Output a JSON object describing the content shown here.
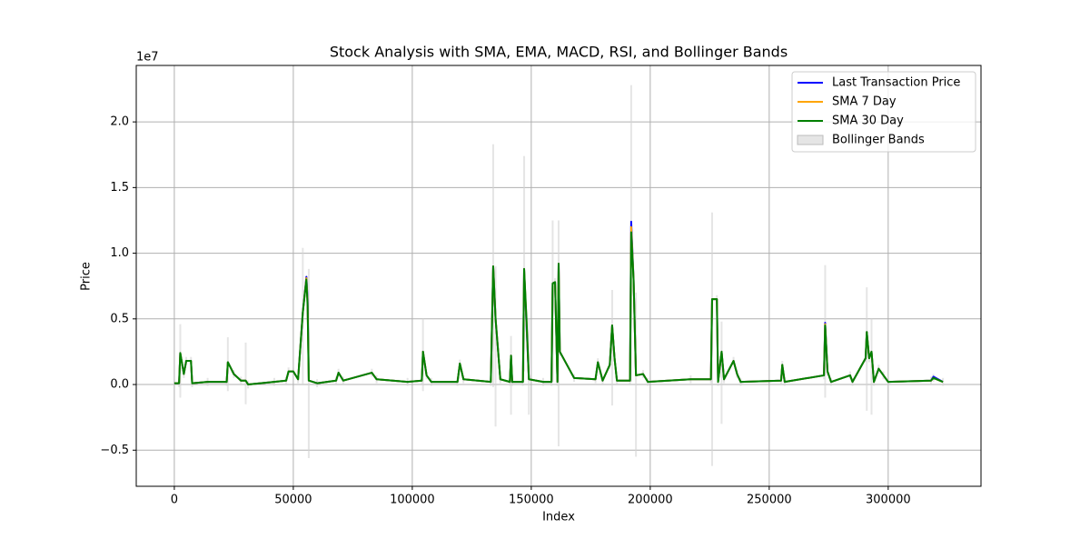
{
  "chart_data": {
    "type": "line",
    "title": "Stock Analysis with SMA, EMA, MACD, RSI, and Bollinger Bands",
    "x_label": "Index",
    "y_label": "Price",
    "y_offset_label": "1e7",
    "xlim": [
      -16000,
      339000
    ],
    "ylim": [
      -0.775,
      2.43
    ],
    "xticks": [
      0,
      50000,
      100000,
      150000,
      200000,
      250000,
      300000
    ],
    "yticks": [
      {
        "value": -0.5,
        "label": "−0.5"
      },
      {
        "value": 0,
        "label": "0.0"
      },
      {
        "value": 0.5,
        "label": "0.5"
      },
      {
        "value": 1,
        "label": "1.0"
      },
      {
        "value": 1.5,
        "label": "1.5"
      },
      {
        "value": 2,
        "label": "2.0"
      }
    ],
    "grid": true,
    "legend_position": "upper-right",
    "x": [
      0,
      2000,
      2500,
      4000,
      5000,
      7000,
      7500,
      14000,
      22000,
      22500,
      25000,
      28000,
      30000,
      31000,
      42000,
      47000,
      48000,
      50000,
      52000,
      54000,
      55500,
      56000,
      56500,
      60000,
      68000,
      69000,
      71000,
      83000,
      85000,
      98000,
      104000,
      104500,
      106000,
      108000,
      119000,
      120000,
      121500,
      133000,
      134000,
      135000,
      137000,
      141000,
      141500,
      142000,
      146500,
      147000,
      148000,
      149000,
      155000,
      158500,
      159000,
      160000,
      161000,
      161500,
      162000,
      168000,
      177000,
      178000,
      180000,
      183000,
      184000,
      185000,
      186000,
      191500,
      192000,
      193000,
      194000,
      197000,
      199000,
      217000,
      225500,
      226000,
      228000,
      228500,
      230000,
      231000,
      235000,
      236500,
      238000,
      255000,
      255500,
      256500,
      273000,
      273500,
      274500,
      276000,
      284000,
      285000,
      290500,
      291000,
      292000,
      293000,
      294000,
      296000,
      298000,
      300000,
      318000,
      319000,
      323000
    ],
    "bands": {
      "name": "Bollinger Bands",
      "color": "#d3d3d3",
      "upper": [
        0.04,
        0.04,
        0.46,
        0.11,
        0.21,
        0.21,
        0.04,
        0.05,
        0.05,
        0.36,
        0.11,
        0.06,
        0.32,
        0.03,
        0.05,
        0.06,
        0.13,
        0.13,
        0.07,
        1.04,
        0.83,
        0.63,
        0.88,
        0.04,
        0.06,
        0.12,
        0.06,
        0.12,
        0.07,
        0.05,
        0.06,
        0.5,
        0.1,
        0.05,
        0.05,
        0.19,
        0.07,
        0.05,
        1.83,
        0.9,
        0.07,
        0.05,
        0.37,
        0.05,
        0.05,
        1.74,
        0.53,
        0.5,
        0.05,
        0.05,
        1.25,
        0.81,
        0.05,
        1.25,
        0.28,
        0.08,
        0.07,
        0.2,
        0.06,
        0.18,
        0.72,
        0.23,
        0.06,
        0.06,
        2.28,
        0.83,
        0.7,
        0.11,
        0.05,
        0.07,
        0.07,
        1.31,
        0.68,
        0.05,
        0.48,
        0.07,
        0.21,
        0.11,
        0.05,
        0.06,
        0.18,
        0.05,
        0.1,
        0.91,
        0.13,
        0.05,
        0.1,
        0.05,
        0.23,
        0.74,
        0.23,
        0.5,
        0.05,
        0.15,
        0.1,
        0.05,
        0.06,
        0.08,
        0.05
      ],
      "lower": [
        -0.02,
        -0.02,
        -0.1,
        0.05,
        0.15,
        0.15,
        -0.02,
        -0.01,
        -0.01,
        -0.05,
        0.05,
        0,
        -0.15,
        -0.03,
        -0.01,
        0,
        0.07,
        0.07,
        0.01,
        0,
        0.77,
        0.57,
        -0.56,
        -0.02,
        0,
        0.06,
        0,
        0.06,
        0.01,
        -0.01,
        0,
        -0.05,
        0.04,
        -0.01,
        -0.01,
        0.13,
        0.01,
        -0.01,
        -0.02,
        -0.32,
        0.01,
        -0.01,
        -0.23,
        -0.01,
        -0.01,
        0.1,
        0.47,
        -0.23,
        -0.01,
        -0.01,
        0.02,
        0.75,
        -0.01,
        -0.47,
        0.22,
        0.02,
        0.01,
        0.14,
        0,
        0.12,
        -0.16,
        0.17,
        0,
        0,
        0.02,
        0.77,
        -0.55,
        0.05,
        -0.01,
        0.01,
        0.01,
        -0.62,
        0.62,
        -0.01,
        -0.3,
        0.01,
        0.15,
        0.05,
        -0.01,
        0,
        0.12,
        -0.01,
        0.04,
        -0.1,
        0.07,
        -0.01,
        0.04,
        -0.01,
        0.17,
        -0.2,
        0.17,
        -0.23,
        -0.01,
        0.09,
        0.04,
        -0.01,
        0,
        0.02,
        -0.01
      ]
    },
    "series": [
      {
        "name": "Last Transaction Price",
        "color": "#0000ff",
        "values": [
          0.01,
          0.01,
          0.24,
          0.08,
          0.18,
          0.18,
          0.01,
          0.02,
          0.02,
          0.17,
          0.08,
          0.03,
          0.03,
          0,
          0.02,
          0.03,
          0.1,
          0.1,
          0.04,
          0.55,
          0.82,
          0.65,
          0.03,
          0.01,
          0.03,
          0.09,
          0.03,
          0.09,
          0.04,
          0.02,
          0.03,
          0.25,
          0.07,
          0.02,
          0.02,
          0.16,
          0.04,
          0.02,
          0.9,
          0.5,
          0.04,
          0.02,
          0.22,
          0.02,
          0.02,
          0.88,
          0.45,
          0.04,
          0.02,
          0.02,
          0.77,
          0.78,
          0.02,
          0.92,
          0.25,
          0.05,
          0.04,
          0.17,
          0.03,
          0.15,
          0.45,
          0.2,
          0.03,
          0.03,
          1.24,
          0.8,
          0.07,
          0.08,
          0.02,
          0.04,
          0.04,
          0.65,
          0.65,
          0.02,
          0.25,
          0.04,
          0.18,
          0.08,
          0.02,
          0.03,
          0.15,
          0.02,
          0.07,
          0.47,
          0.1,
          0.02,
          0.07,
          0.02,
          0.2,
          0.4,
          0.2,
          0.25,
          0.02,
          0.12,
          0.07,
          0.02,
          0.03,
          0.06,
          0.02
        ]
      },
      {
        "name": "SMA 7 Day",
        "color": "#ffa500",
        "values": [
          0.01,
          0.01,
          0.24,
          0.08,
          0.18,
          0.18,
          0.01,
          0.02,
          0.02,
          0.17,
          0.08,
          0.03,
          0.03,
          0,
          0.02,
          0.03,
          0.1,
          0.1,
          0.04,
          0.55,
          0.81,
          0.62,
          0.03,
          0.01,
          0.03,
          0.09,
          0.03,
          0.09,
          0.04,
          0.02,
          0.03,
          0.25,
          0.07,
          0.02,
          0.02,
          0.16,
          0.04,
          0.02,
          0.9,
          0.5,
          0.04,
          0.02,
          0.22,
          0.02,
          0.02,
          0.88,
          0.48,
          0.04,
          0.02,
          0.02,
          0.77,
          0.78,
          0.02,
          0.92,
          0.25,
          0.05,
          0.04,
          0.17,
          0.03,
          0.15,
          0.45,
          0.2,
          0.03,
          0.03,
          1.2,
          0.8,
          0.07,
          0.08,
          0.02,
          0.04,
          0.04,
          0.65,
          0.65,
          0.02,
          0.25,
          0.04,
          0.18,
          0.08,
          0.02,
          0.03,
          0.15,
          0.02,
          0.07,
          0.46,
          0.1,
          0.02,
          0.07,
          0.02,
          0.2,
          0.4,
          0.2,
          0.25,
          0.02,
          0.12,
          0.07,
          0.02,
          0.03,
          0.05,
          0.02
        ]
      },
      {
        "name": "SMA 30 Day",
        "color": "#008000",
        "values": [
          0.01,
          0.01,
          0.24,
          0.08,
          0.18,
          0.18,
          0.01,
          0.02,
          0.02,
          0.17,
          0.08,
          0.03,
          0.03,
          0,
          0.02,
          0.03,
          0.1,
          0.1,
          0.04,
          0.55,
          0.8,
          0.6,
          0.03,
          0.01,
          0.03,
          0.09,
          0.03,
          0.09,
          0.04,
          0.02,
          0.03,
          0.25,
          0.07,
          0.02,
          0.02,
          0.16,
          0.04,
          0.02,
          0.9,
          0.5,
          0.04,
          0.02,
          0.22,
          0.02,
          0.02,
          0.88,
          0.5,
          0.04,
          0.02,
          0.02,
          0.77,
          0.78,
          0.02,
          0.92,
          0.25,
          0.05,
          0.04,
          0.17,
          0.03,
          0.15,
          0.45,
          0.2,
          0.03,
          0.03,
          1.16,
          0.8,
          0.07,
          0.08,
          0.02,
          0.04,
          0.04,
          0.65,
          0.65,
          0.02,
          0.25,
          0.04,
          0.18,
          0.08,
          0.02,
          0.03,
          0.15,
          0.02,
          0.07,
          0.45,
          0.1,
          0.02,
          0.07,
          0.02,
          0.2,
          0.4,
          0.2,
          0.25,
          0.02,
          0.12,
          0.07,
          0.02,
          0.03,
          0.05,
          0.02
        ]
      }
    ]
  }
}
